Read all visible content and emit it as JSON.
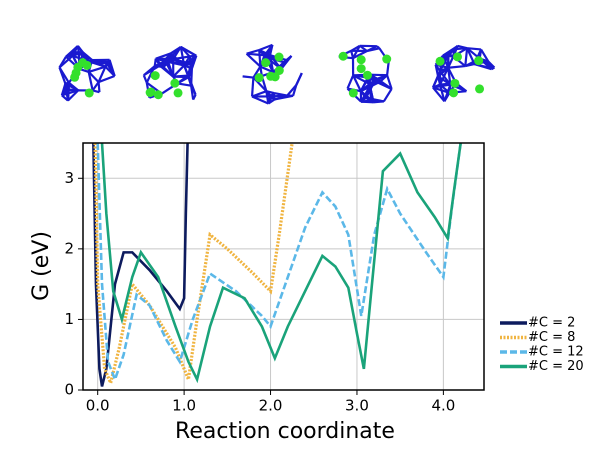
{
  "chart_data": {
    "type": "line",
    "xlabel": "Reaction coordinate",
    "ylabel": "G (eV)",
    "xlim": [
      -0.17,
      4.47
    ],
    "ylim": [
      0,
      3.5
    ],
    "xticks": [
      {
        "value": 0,
        "label": "0.0"
      },
      {
        "value": 1,
        "label": "1.0"
      },
      {
        "value": 2,
        "label": "2.0"
      },
      {
        "value": 3,
        "label": "3.0"
      },
      {
        "value": 4,
        "label": "4.0"
      }
    ],
    "yticks": [
      0,
      1,
      2,
      3
    ],
    "grid": true,
    "legend": "right",
    "series": [
      {
        "name": "#C = 2",
        "color": "#0d1b5e",
        "dash": "solid",
        "x": [
          -0.05,
          -0.02,
          0.02,
          0.05,
          0.1,
          0.2,
          0.3,
          0.4,
          0.6,
          0.8,
          0.95,
          1.0,
          1.02,
          1.04
        ],
        "values": [
          3.5,
          1.5,
          0.3,
          0.05,
          0.3,
          1.5,
          1.95,
          1.95,
          1.7,
          1.4,
          1.15,
          1.3,
          2.5,
          3.5
        ]
      },
      {
        "name": "#C = 8",
        "color": "#f0b440",
        "dash": "dotted",
        "x": [
          -0.03,
          0.0,
          0.08,
          0.15,
          0.25,
          0.4,
          0.6,
          0.9,
          1.05,
          1.15,
          1.3,
          1.5,
          1.8,
          2.0,
          2.1,
          2.25
        ],
        "values": [
          3.5,
          1.5,
          0.3,
          0.1,
          0.6,
          1.5,
          1.2,
          0.6,
          0.15,
          1.0,
          2.2,
          2.0,
          1.65,
          1.4,
          2.2,
          3.5
        ]
      },
      {
        "name": "#C = 12",
        "color": "#5bb8e8",
        "dash": "dashed",
        "x": [
          0.0,
          0.05,
          0.12,
          0.2,
          0.3,
          0.45,
          0.6,
          0.8,
          0.95,
          1.1,
          1.3,
          1.6,
          1.9,
          2.0,
          2.2,
          2.4,
          2.6,
          2.75,
          2.9,
          3.05,
          3.2,
          3.35,
          3.5,
          3.8,
          4.0,
          4.1,
          4.2
        ],
        "values": [
          3.5,
          1.5,
          0.4,
          0.15,
          0.5,
          1.35,
          1.2,
          0.7,
          0.4,
          1.0,
          1.65,
          1.4,
          1.05,
          0.9,
          1.6,
          2.3,
          2.8,
          2.6,
          2.2,
          1.05,
          2.2,
          2.85,
          2.5,
          1.95,
          1.6,
          2.6,
          3.5
        ]
      },
      {
        "name": "#C = 20",
        "color": "#1aa37a",
        "dash": "solid",
        "x": [
          0.05,
          0.1,
          0.18,
          0.28,
          0.4,
          0.5,
          0.7,
          0.9,
          1.05,
          1.15,
          1.3,
          1.45,
          1.7,
          1.9,
          2.05,
          2.2,
          2.4,
          2.6,
          2.75,
          2.9,
          3.0,
          3.08,
          3.15,
          3.3,
          3.5,
          3.7,
          3.9,
          4.05,
          4.12,
          4.2
        ],
        "values": [
          3.5,
          2.5,
          1.4,
          1.0,
          1.6,
          1.95,
          1.6,
          0.9,
          0.4,
          0.15,
          0.9,
          1.45,
          1.3,
          0.9,
          0.45,
          0.9,
          1.4,
          1.9,
          1.75,
          1.45,
          0.8,
          0.3,
          1.2,
          3.1,
          3.35,
          2.8,
          2.45,
          2.15,
          2.8,
          3.5
        ]
      }
    ]
  }
}
